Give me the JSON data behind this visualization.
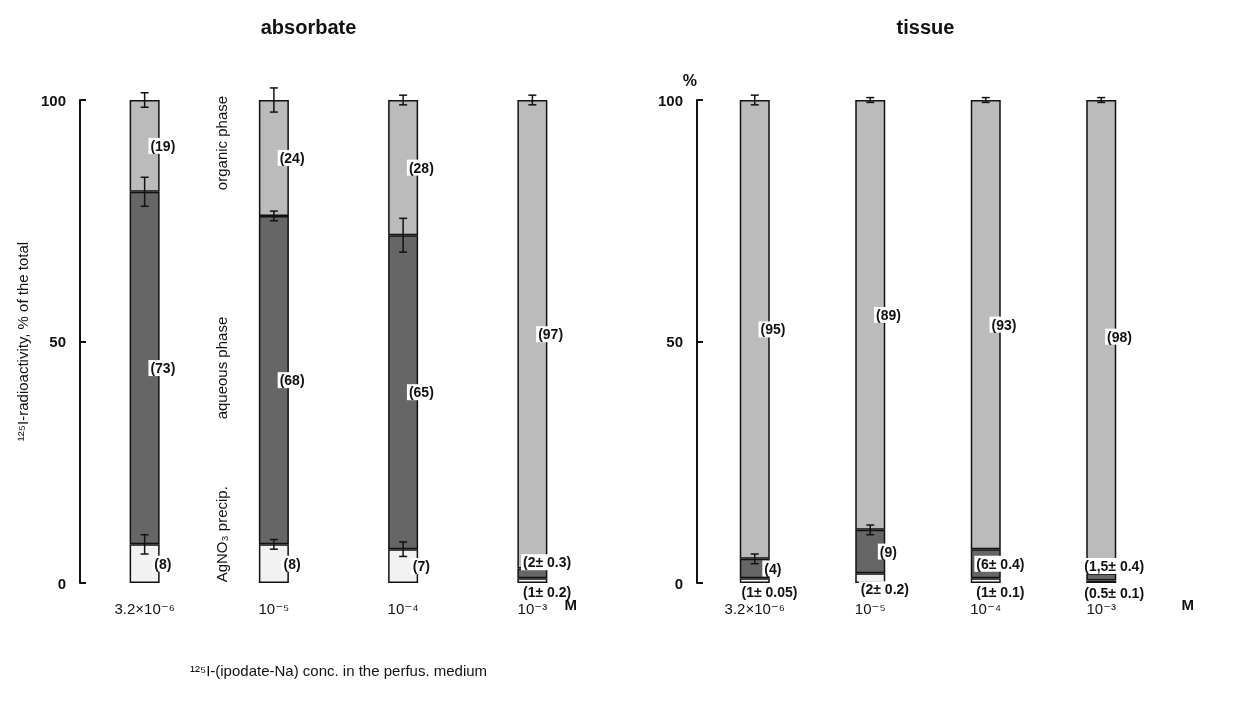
{
  "chart_data": [
    {
      "type": "bar",
      "title": "absorbate",
      "xlabel": "¹²⁵I-(ipodate-Na) conc. in the perfus. medium",
      "ylabel": "¹²⁵I-radioactivity, % of the total",
      "categories": [
        "3.2×10⁻⁶",
        "10⁻⁵",
        "10⁻⁴",
        "10⁻³"
      ],
      "stacked": true,
      "ylim": [
        0,
        100
      ],
      "yticks": [
        0,
        50,
        100
      ],
      "series": [
        {
          "name": "AgNO₃ precip.",
          "color": "#f2f2f2",
          "values": [
            8,
            8,
            7,
            1
          ],
          "errors": [
            2,
            1,
            1.5,
            null
          ],
          "value_labels": [
            "(8)",
            "(8)",
            "(7)",
            "(1± 0.2)"
          ]
        },
        {
          "name": "aqueous phase",
          "color": "#666666",
          "values": [
            73,
            68,
            65,
            2
          ],
          "errors": [
            3,
            1,
            3.5,
            null
          ],
          "value_labels": [
            "(73)",
            "(68)",
            "(65)",
            "(2± 0.3)"
          ]
        },
        {
          "name": "organic phase",
          "color": "#bbbbbb",
          "values": [
            19,
            24,
            28,
            97
          ],
          "errors": [
            1.5,
            2.5,
            1,
            1
          ],
          "value_labels": [
            "(19)",
            "(24)",
            "(28)",
            "(97)"
          ]
        }
      ],
      "annotations": [
        "M"
      ]
    },
    {
      "type": "bar",
      "title": "tissue",
      "ylabel": "%",
      "categories": [
        "3.2×10⁻⁶",
        "10⁻⁵",
        "10⁻⁴",
        "10⁻³"
      ],
      "stacked": true,
      "ylim": [
        0,
        100
      ],
      "yticks": [
        0,
        50,
        100
      ],
      "series": [
        {
          "color": "#f2f2f2",
          "values": [
            1,
            2,
            1,
            0.5
          ],
          "value_labels": [
            "(1± 0.05)",
            "(2± 0.2)",
            "(1± 0.1)",
            "(0.5± 0.1)"
          ]
        },
        {
          "color": "#666666",
          "values": [
            4,
            9,
            6,
            1.5
          ],
          "errors": [
            1,
            1,
            null,
            null
          ],
          "value_labels": [
            "(4)",
            "(9)",
            "(6± 0.4)",
            "(1,5± 0.4)"
          ]
        },
        {
          "color": "#bbbbbb",
          "values": [
            95,
            89,
            93,
            98
          ],
          "errors": [
            1,
            0.5,
            0.5,
            0.5
          ],
          "value_labels": [
            "(95)",
            "(89)",
            "(93)",
            "(98)"
          ]
        }
      ],
      "annotations": [
        "M"
      ]
    }
  ]
}
